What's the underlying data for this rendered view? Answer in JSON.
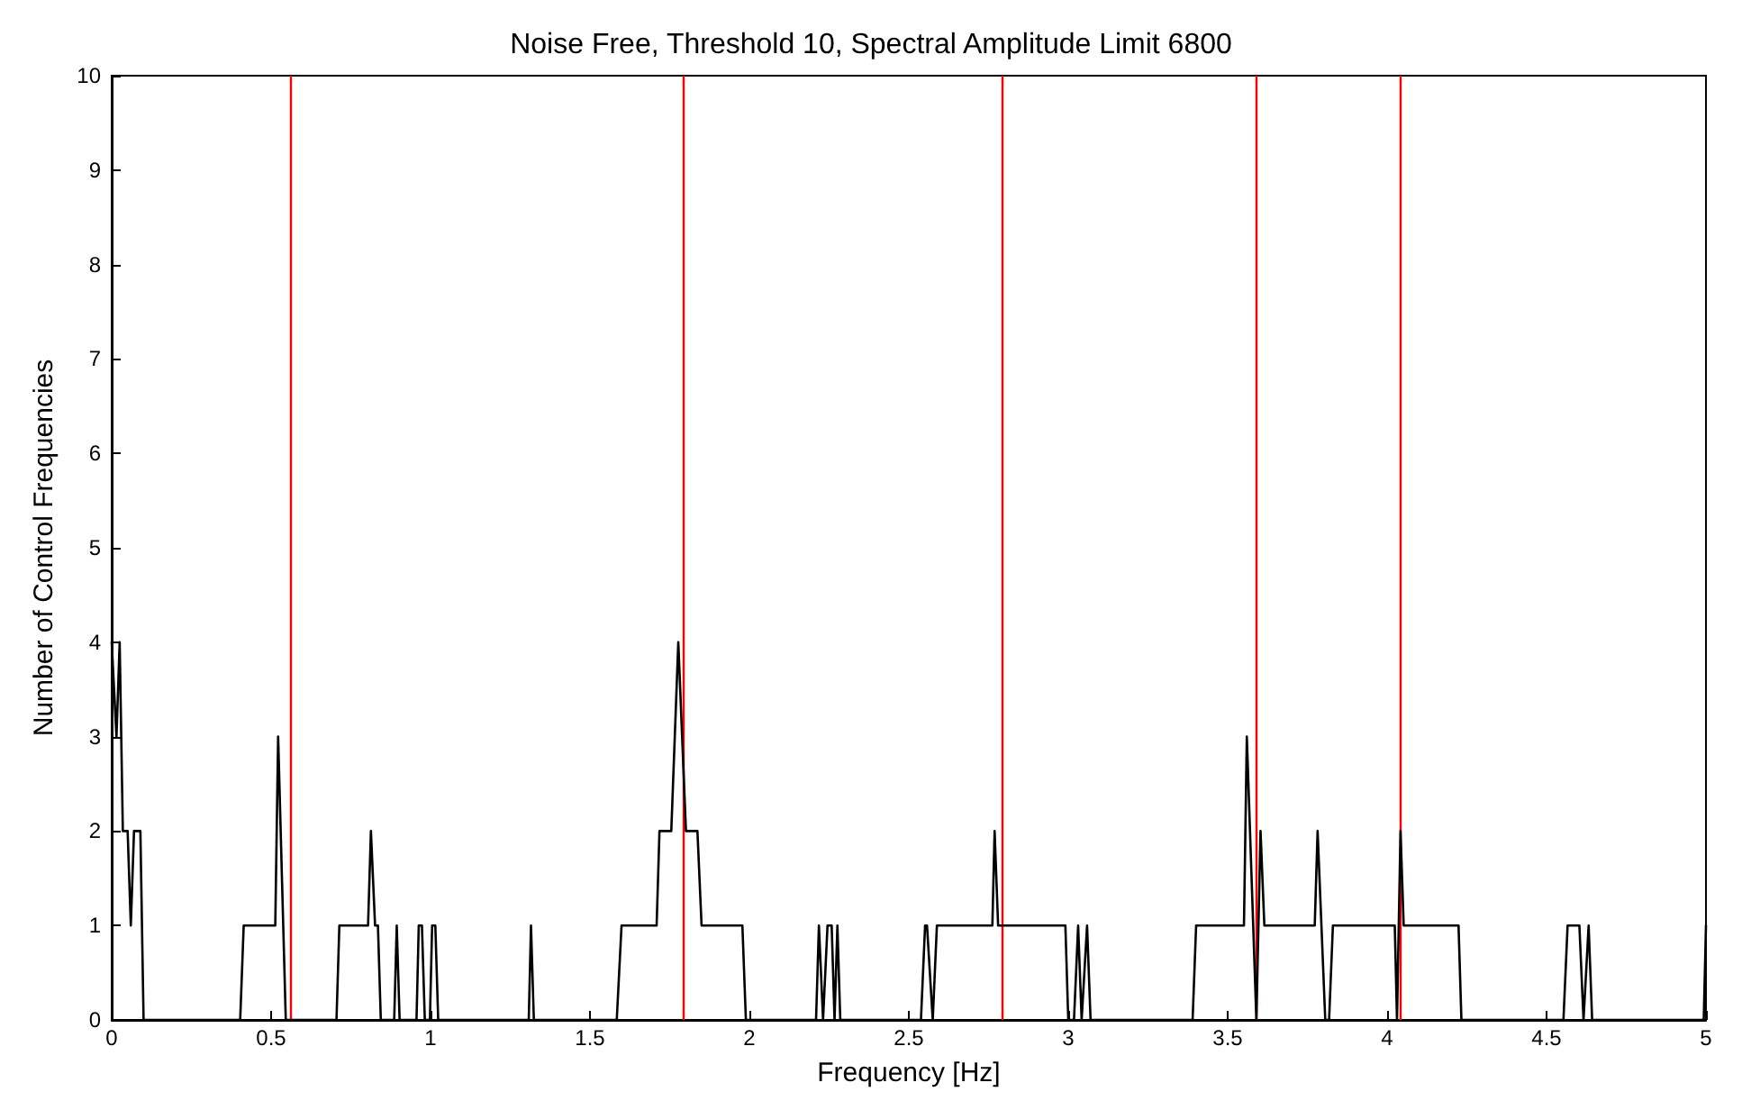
{
  "chart_data": {
    "type": "line",
    "title": "Noise Free, Threshold 10, Spectral Amplitude Limit 6800",
    "xlabel": "Frequency [Hz]",
    "ylabel": "Number of Control Frequencies",
    "xlim": [
      0,
      5
    ],
    "xticks": [
      0,
      0.5,
      1,
      1.5,
      2,
      2.5,
      3,
      3.5,
      4,
      4.5,
      5
    ],
    "ylim": [
      0,
      10
    ],
    "yticks": [
      0,
      1,
      2,
      3,
      4,
      5,
      6,
      7,
      8,
      9,
      10
    ],
    "grid": false,
    "marker": "none",
    "line_style": "solid",
    "series": [
      {
        "color": "#000000",
        "x": [
          0,
          0.015,
          0.025,
          0.035,
          0.05,
          0.06,
          0.07,
          0.09,
          0.1,
          0.403,
          0.414,
          0.513,
          0.522,
          0.546,
          0.705,
          0.714,
          0.804,
          0.813,
          0.826,
          0.835,
          0.844,
          0.886,
          0.894,
          0.903,
          0.956,
          0.963,
          0.973,
          0.982,
          0.998,
          1.005,
          1.015,
          1.024,
          1.308,
          1.315,
          1.324,
          1.584,
          1.599,
          1.709,
          1.718,
          1.755,
          1.777,
          1.801,
          1.837,
          1.85,
          1.978,
          1.989,
          2.209,
          2.218,
          2.231,
          2.245,
          2.258,
          2.267,
          2.276,
          2.285,
          2.538,
          2.551,
          2.557,
          2.575,
          2.588,
          2.762,
          2.769,
          2.78,
          2.991,
          3,
          3.018,
          3.031,
          3.042,
          3.059,
          3.07,
          3.39,
          3.401,
          3.551,
          3.56,
          3.59,
          3.603,
          3.615,
          3.773,
          3.782,
          3.806,
          3.818,
          3.83,
          4.024,
          4.031,
          4.042,
          4.052,
          4.224,
          4.233,
          4.553,
          4.566,
          4.603,
          4.616,
          4.632,
          4.643,
          4.993,
          5
        ],
        "values": [
          4,
          3,
          4,
          2,
          2,
          1,
          2,
          2,
          0,
          0,
          1,
          1,
          3,
          0,
          0,
          1,
          1,
          2,
          1,
          1,
          0,
          0,
          1,
          0,
          0,
          1,
          1,
          0,
          0,
          1,
          1,
          0,
          0,
          1,
          0,
          0,
          1,
          1,
          2,
          2,
          4,
          2,
          2,
          1,
          1,
          0,
          0,
          1,
          0,
          1,
          1,
          0,
          1,
          0,
          0,
          1,
          1,
          0,
          1,
          1,
          2,
          1,
          1,
          0,
          0,
          1,
          0,
          1,
          0,
          0,
          1,
          1,
          3,
          0,
          2,
          1,
          1,
          2,
          0,
          0,
          1,
          1,
          0,
          2,
          1,
          1,
          0,
          0,
          1,
          1,
          0,
          1,
          0,
          0,
          1
        ]
      }
    ],
    "ref_lines": [
      {
        "axis": "x",
        "value": 0.557,
        "color": "#ff0000"
      },
      {
        "axis": "x",
        "value": 1.786,
        "color": "#ff0000"
      },
      {
        "axis": "x",
        "value": 2.79,
        "color": "#ff0000"
      },
      {
        "axis": "x",
        "value": 3.588,
        "color": "#ff0000"
      },
      {
        "axis": "x",
        "value": 4.035,
        "color": "#ff0000"
      }
    ]
  }
}
